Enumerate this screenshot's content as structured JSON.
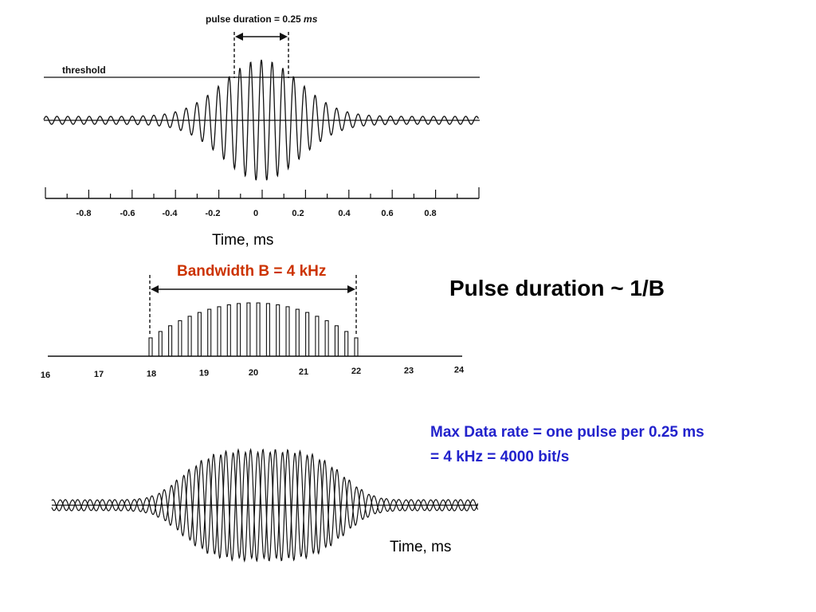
{
  "colors": {
    "ink": "#111111",
    "bandwidth": "#cc3300",
    "rate": "#2222cc"
  },
  "top_panel": {
    "pulse_duration_label": "pulse duration = 0.25 ",
    "pulse_duration_unit": "ms",
    "threshold_label": "threshold",
    "ticks": [
      "-0.8",
      "-0.6",
      "-0.4",
      "-0.2",
      "0",
      "0.2",
      "0.4",
      "0.6",
      "0.8"
    ],
    "axis_label": "Time, ms"
  },
  "spectrum_panel": {
    "bandwidth_label": "Bandwidth B = 4 kHz",
    "ticks": [
      "16",
      "17",
      "18",
      "19",
      "20",
      "21",
      "22",
      "23",
      "24"
    ]
  },
  "bottom_panel": {
    "axis_label": "Time, ms"
  },
  "right_text": {
    "relation": "Pulse duration ~ 1/B",
    "rate_line1": "Max Data rate = one pulse per 0.25 ms",
    "rate_line2": "= 4 kHz = 4000 bit/s"
  }
}
